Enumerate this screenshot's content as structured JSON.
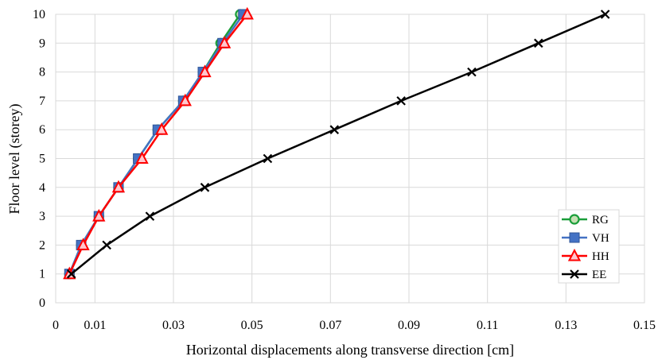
{
  "chart_data": {
    "type": "line",
    "title": "",
    "xlabel": "Horizontal displacements along transverse direction [cm]",
    "ylabel": "Floor level (storey)",
    "xlim": [
      0,
      0.15
    ],
    "ylim": [
      0,
      10
    ],
    "x_ticks": [
      "0",
      "0.01",
      "0.03",
      "0.05",
      "0.07",
      "0.09",
      "0.11",
      "0.13",
      "0.15"
    ],
    "y_ticks": [
      "0",
      "1",
      "2",
      "3",
      "4",
      "5",
      "6",
      "7",
      "8",
      "9",
      "10"
    ],
    "grid": "vertical-and-horizontal",
    "legend_position": "bottom-right",
    "series": [
      {
        "name": "RG",
        "color": "#1a9e3a",
        "marker": "circle",
        "x": [
          0.0035,
          0.0065,
          0.011,
          0.016,
          0.021,
          0.026,
          0.0325,
          0.0375,
          0.042,
          0.047
        ],
        "y": [
          1,
          2,
          3,
          4,
          5,
          6,
          7,
          8,
          9,
          10
        ]
      },
      {
        "name": "VH",
        "color": "#4472c4",
        "marker": "square",
        "x": [
          0.0035,
          0.0065,
          0.011,
          0.016,
          0.021,
          0.026,
          0.0325,
          0.0375,
          0.0425,
          0.0478
        ],
        "y": [
          1,
          2,
          3,
          4,
          5,
          6,
          7,
          8,
          9,
          10
        ]
      },
      {
        "name": "HH",
        "color": "#ff0000",
        "marker": "triangle",
        "x": [
          0.0035,
          0.007,
          0.011,
          0.016,
          0.022,
          0.027,
          0.033,
          0.038,
          0.043,
          0.0488
        ],
        "y": [
          1,
          2,
          3,
          4,
          5,
          6,
          7,
          8,
          9,
          10
        ]
      },
      {
        "name": "EE",
        "color": "#000000",
        "marker": "x",
        "x": [
          0.004,
          0.013,
          0.024,
          0.038,
          0.054,
          0.071,
          0.088,
          0.106,
          0.123,
          0.14
        ],
        "y": [
          1,
          2,
          3,
          4,
          5,
          6,
          7,
          8,
          9,
          10
        ]
      }
    ]
  }
}
